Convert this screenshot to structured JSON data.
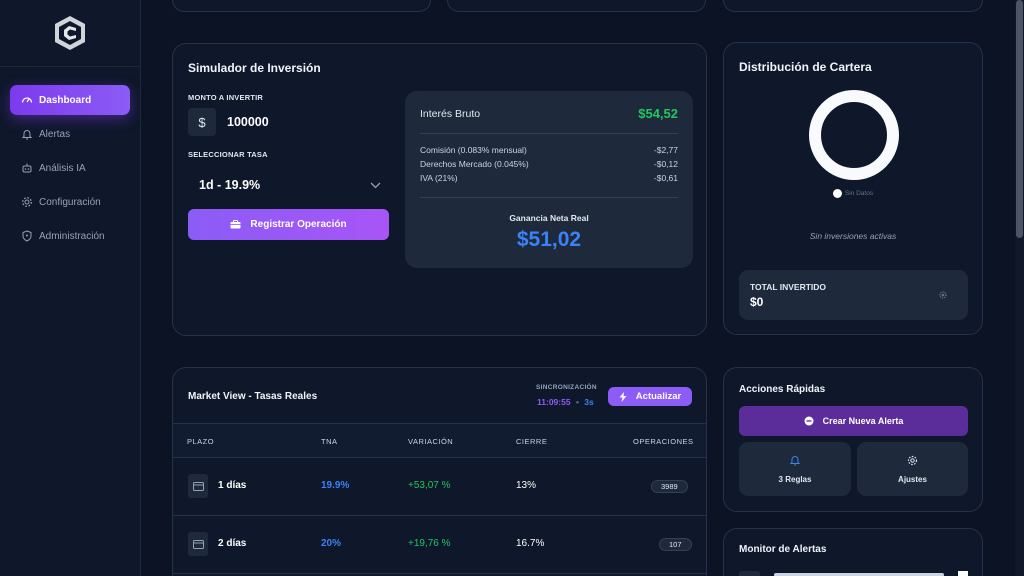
{
  "sidebar": {
    "items": [
      {
        "label": "Dashboard",
        "icon": "gauge-icon",
        "active": true
      },
      {
        "label": "Alertas",
        "icon": "bell-icon"
      },
      {
        "label": "Análisis IA",
        "icon": "robot-icon"
      },
      {
        "label": "Configuración",
        "icon": "gear-icon"
      },
      {
        "label": "Administración",
        "icon": "shield-icon"
      }
    ]
  },
  "simulator": {
    "title": "Simulador de Inversión",
    "amount_label": "MONTO A INVERTIR",
    "currency_symbol": "$",
    "amount_value": "100000",
    "rate_label": "SELECCIONAR TASA",
    "rate_value": "1d - 19.9%",
    "register_button": "Registrar Operación",
    "breakdown": {
      "gross_label": "Interés Bruto",
      "gross_value": "$54,52",
      "rows": [
        {
          "label": "Comisión (0.083% mensual)",
          "value": "-$2,77"
        },
        {
          "label": "Derechos Mercado (0.045%)",
          "value": "-$0,12"
        },
        {
          "label": "IVA (21%)",
          "value": "-$0,61"
        }
      ],
      "net_label": "Ganancia Neta Real",
      "net_value": "$51,02"
    }
  },
  "portfolio": {
    "title": "Distribución de Cartera",
    "legend_label": "Sin Datos",
    "empty_text": "Sin inversiones activas",
    "total_label": "TOTAL INVERTIDO",
    "total_value": "$0"
  },
  "market": {
    "title": "Market View - Tasas Reales",
    "sync_label": "SINCRONIZACIÓN",
    "sync_time": "11:09:55",
    "sync_separator": "•",
    "sync_interval": "3s",
    "refresh_button": "Actualizar",
    "columns": [
      "PLAZO",
      "TNA",
      "VARIACIÓN",
      "CIERRE",
      "OPERACIONES"
    ],
    "rows": [
      {
        "plazo": "1 días",
        "tna": "19.9%",
        "variacion": "+53,07 %",
        "cierre": "13%",
        "operaciones": "3989"
      },
      {
        "plazo": "2 días",
        "tna": "20%",
        "variacion": "+19,76 %",
        "cierre": "16.7%",
        "operaciones": "107"
      }
    ]
  },
  "quick_actions": {
    "title": "Acciones Rápidas",
    "create_alert": "Crear Nueva Alerta",
    "rules_label": "3 Reglas",
    "settings_label": "Ajustes"
  },
  "alerts_monitor": {
    "title": "Monitor de Alertas"
  },
  "colors": {
    "accent": "#8b5cf6",
    "positive": "#22c55e",
    "net_blue": "#3b82f6",
    "panel": "#0f172a",
    "background": "#0b1324"
  }
}
